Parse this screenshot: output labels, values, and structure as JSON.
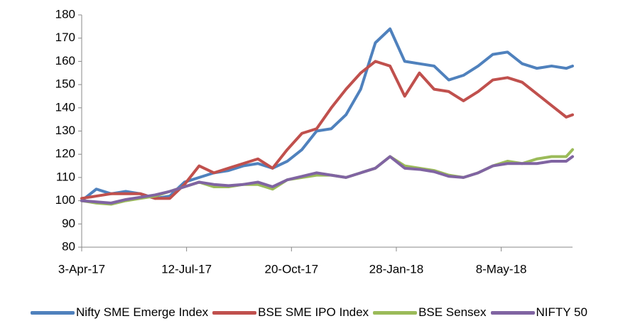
{
  "chart_data": {
    "type": "line",
    "x": [
      "2017-04-03",
      "2017-04-17",
      "2017-05-01",
      "2017-05-15",
      "2017-05-29",
      "2017-06-12",
      "2017-06-26",
      "2017-07-10",
      "2017-07-24",
      "2017-08-07",
      "2017-08-21",
      "2017-09-04",
      "2017-09-18",
      "2017-10-02",
      "2017-10-16",
      "2017-10-30",
      "2017-11-13",
      "2017-11-27",
      "2017-12-11",
      "2017-12-25",
      "2018-01-08",
      "2018-01-22",
      "2018-02-05",
      "2018-02-19",
      "2018-03-05",
      "2018-03-19",
      "2018-04-02",
      "2018-04-16",
      "2018-04-30",
      "2018-05-14",
      "2018-05-28",
      "2018-06-11",
      "2018-06-25",
      "2018-07-09",
      "2018-07-15"
    ],
    "series": [
      {
        "name": "Nifty SME Emerge Index",
        "color": "#4f81bd",
        "values": [
          100,
          105,
          103,
          104,
          103,
          101,
          102,
          108,
          110,
          112,
          113,
          115,
          116,
          114,
          117,
          122,
          130,
          131,
          137,
          148,
          168,
          174,
          160,
          159,
          158,
          152,
          154,
          158,
          163,
          164,
          159,
          157,
          158,
          157,
          158
        ]
      },
      {
        "name": "BSE SME IPO Index",
        "color": "#c0504d",
        "values": [
          101,
          102,
          103,
          103,
          103,
          101,
          101,
          107,
          115,
          112,
          114,
          116,
          118,
          114,
          122,
          129,
          131,
          140,
          148,
          155,
          160,
          158,
          145,
          155,
          148,
          147,
          143,
          147,
          152,
          153,
          151,
          146,
          141,
          136,
          137
        ]
      },
      {
        "name": "BSE Sensex",
        "color": "#9bbb59",
        "values": [
          100,
          99,
          98.5,
          100,
          101,
          102,
          104,
          106,
          108,
          106,
          106,
          107,
          107,
          105,
          109,
          110,
          111,
          111,
          110,
          112,
          114,
          119,
          115,
          114,
          113,
          111,
          110,
          112,
          115,
          117,
          116,
          118,
          119,
          119,
          122
        ]
      },
      {
        "name": "NIFTY 50",
        "color": "#8064a2",
        "values": [
          100,
          99.5,
          99,
          100.5,
          101.5,
          102.5,
          104,
          106,
          108,
          107,
          106.5,
          107,
          108,
          106,
          109,
          110.5,
          112,
          111,
          110,
          112,
          114,
          119,
          114,
          113.5,
          112.5,
          110.5,
          110,
          112,
          115,
          116,
          116,
          116,
          117,
          117,
          119
        ]
      }
    ],
    "xlim": [
      "2017-04-03",
      "2018-07-15"
    ],
    "xticks": [
      {
        "value": "2017-04-03",
        "label": "3-Apr-17"
      },
      {
        "value": "2017-07-12",
        "label": "12-Jul-17"
      },
      {
        "value": "2017-10-20",
        "label": "20-Oct-17"
      },
      {
        "value": "2018-01-28",
        "label": "28-Jan-18"
      },
      {
        "value": "2018-05-08",
        "label": "8-May-18"
      }
    ],
    "ylim": [
      80,
      180
    ],
    "yticks": [
      80,
      90,
      100,
      110,
      120,
      130,
      140,
      150,
      160,
      170,
      180
    ],
    "grid": false,
    "legend": "bottom"
  }
}
